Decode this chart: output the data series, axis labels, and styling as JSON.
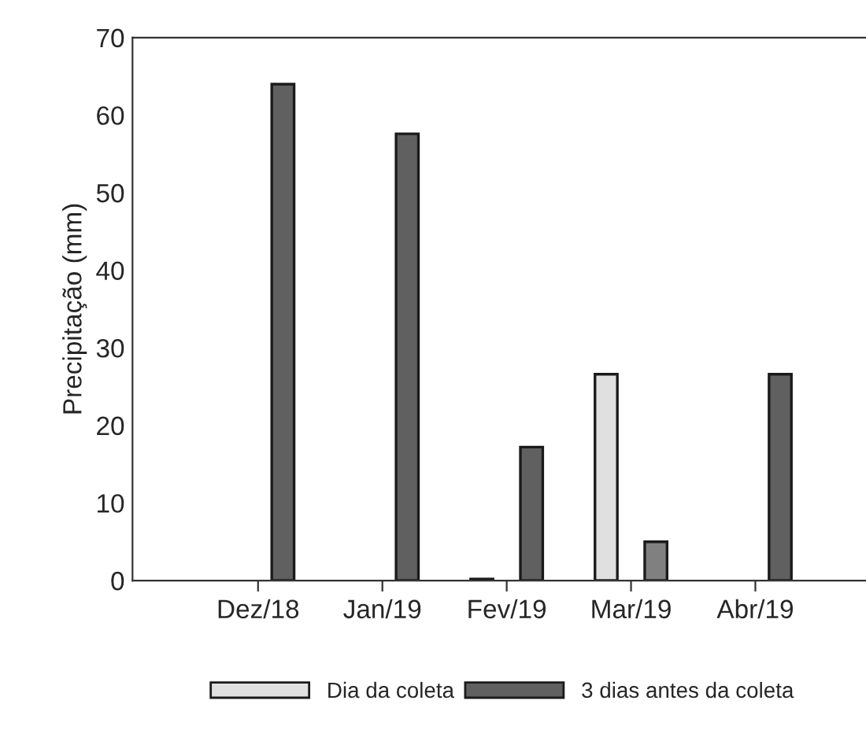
{
  "chart_data": {
    "type": "bar",
    "ylabel": "Precipitação (mm)",
    "categories": [
      "Dez/18",
      "Jan/19",
      "Fev/19",
      "Mar/19",
      "Abr/19"
    ],
    "series": [
      {
        "name": "Dia da coleta",
        "color": "#e0e0e0",
        "values": [
          null,
          null,
          0.2,
          26.6,
          null
        ]
      },
      {
        "name": "3 dias antes da coleta",
        "color": "#606060",
        "colors": [
          "#606060",
          "#606060",
          "#606060",
          "#808080",
          "#606060"
        ],
        "values": [
          64,
          57.6,
          17.2,
          5.0,
          26.6
        ]
      }
    ],
    "ylim": [
      0,
      70
    ],
    "yticks": [
      0,
      10,
      20,
      30,
      40,
      50,
      60,
      70
    ],
    "grid": false,
    "legend": "bottom"
  }
}
